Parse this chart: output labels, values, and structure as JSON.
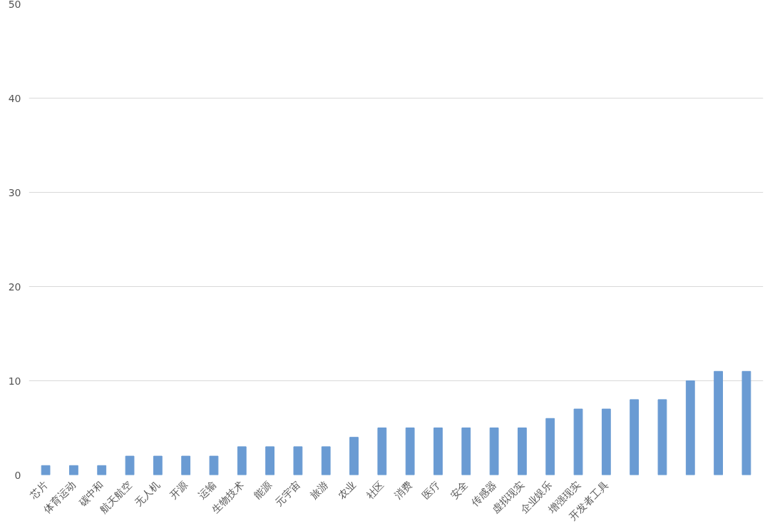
{
  "chart_data": {
    "type": "bar",
    "categories": [
      "芯片",
      "体育运动",
      "碳中和",
      "航天航空",
      "无人机",
      "开源",
      "运输",
      "生物技术",
      "能源",
      "元宇宙",
      "旅游",
      "农业",
      "社区",
      "消费",
      "医疗",
      "安全",
      "传感器",
      "虚拟现实",
      "企业娱乐",
      "增强现实",
      "开发者工具",
      null,
      null,
      null,
      null,
      null
    ],
    "values": [
      1,
      1,
      1,
      2,
      2,
      2,
      2,
      3,
      3,
      3,
      3,
      4,
      5,
      5,
      5,
      5,
      5,
      5,
      6,
      7,
      7,
      8,
      8,
      10,
      11,
      11
    ],
    "color": "#6a9bd3",
    "ylim": [
      0,
      50
    ],
    "yticks": [
      0,
      10,
      20,
      30,
      40,
      50
    ],
    "grid": "y"
  }
}
